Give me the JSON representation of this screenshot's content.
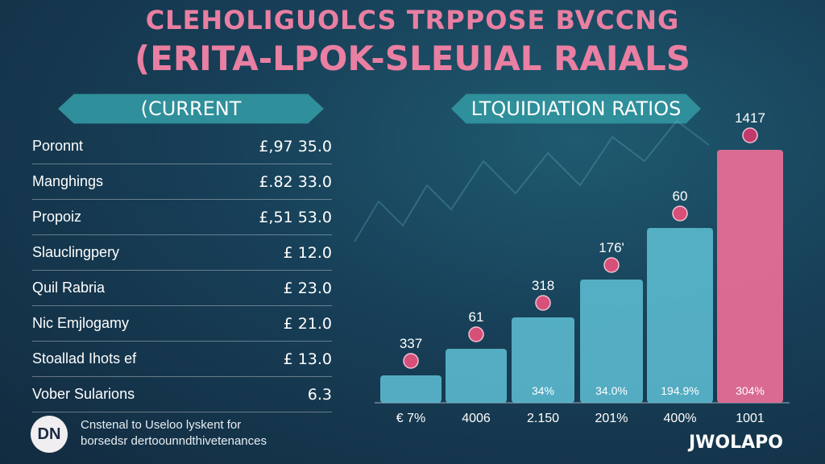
{
  "header": {
    "title_line1": "CLEHOLIGUOLCS TRPPOSE BVCCNG",
    "title_line2": "(ERITA-LPOK-SLEUIAL RAIALS"
  },
  "left_banner": "(CURRENT",
  "right_banner": "LTQUIDIATION RATIOS",
  "table_rows": [
    {
      "label": "Poronnt",
      "value": "£,97 35.0"
    },
    {
      "label": "Manghings",
      "value": "£.82 33.0"
    },
    {
      "label": "Propoiz",
      "value": "£,51 53.0"
    },
    {
      "label": "Slauclingpery",
      "value": "£ 12.0"
    },
    {
      "label": "Quil Rabria",
      "value": "£ 23.0"
    },
    {
      "label": "Nic Emjlogamy",
      "value": "£ 21.0"
    },
    {
      "label": "Stoallad Ihots ef",
      "value": "£ 13.0"
    },
    {
      "label": "Vober Sularions",
      "value": "6.3"
    }
  ],
  "footer": {
    "badge": "DN",
    "line1": "Cnstenal to Useloo lyskent for",
    "line2": "borsedsr dertoounndthivetenances"
  },
  "brand": "JWOLAPO",
  "colors": {
    "bar_teal": "#5fc1d6",
    "bar_pink": "#ea6f98",
    "banner": "#2f8f9a",
    "title": "#e97fa2"
  },
  "chart_data": {
    "type": "bar",
    "categories": [
      "€ 7%",
      "4006",
      "2.150",
      "201%",
      "400%",
      "1001"
    ],
    "values": [
      337,
      61,
      318,
      176,
      60,
      1417
    ],
    "data_labels": [
      "337",
      "61",
      "318",
      "176'",
      "60",
      "1417"
    ],
    "inner_labels": [
      "",
      "",
      "34%",
      "34.0%",
      "194.9%",
      "304%"
    ],
    "title": "LTQUIDIATION RATIOS"
  }
}
